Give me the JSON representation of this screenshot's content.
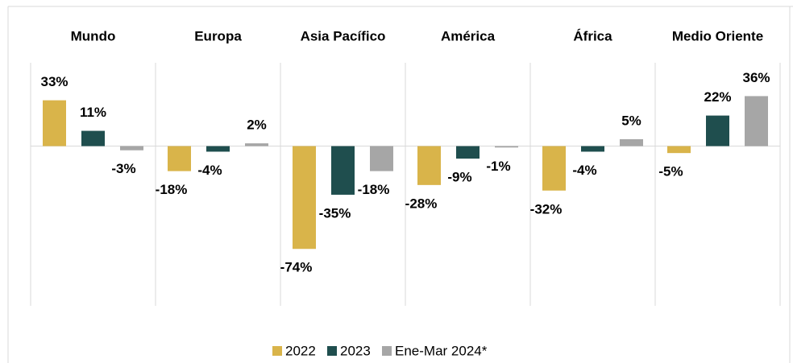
{
  "chart_data": {
    "type": "bar",
    "categories": [
      "Mundo",
      "Europa",
      "Asia Pacífico",
      "América",
      "África",
      "Medio Oriente"
    ],
    "series": [
      {
        "name": "2022",
        "color": "#d9b44a",
        "values": [
          33,
          -18,
          -74,
          -28,
          -32,
          -5
        ],
        "value_labels": [
          "33%",
          "-18%",
          "-74%",
          "-28%",
          "-32%",
          "-5%"
        ]
      },
      {
        "name": "2023",
        "color": "#1f4e4e",
        "values": [
          11,
          -4,
          -35,
          -9,
          -4,
          22
        ],
        "value_labels": [
          "11%",
          "-4%",
          "-35%",
          "-9%",
          "-4%",
          "22%"
        ]
      },
      {
        "name": "Ene-Mar 2024*",
        "color": "#a6a6a6",
        "values": [
          -3,
          2,
          -18,
          -1,
          5,
          36
        ],
        "value_labels": [
          "-3%",
          "2%",
          "-18%",
          "-1%",
          "5%",
          "36%"
        ]
      }
    ],
    "ylim": [
      -115,
      60
    ],
    "legend": "bottom"
  }
}
